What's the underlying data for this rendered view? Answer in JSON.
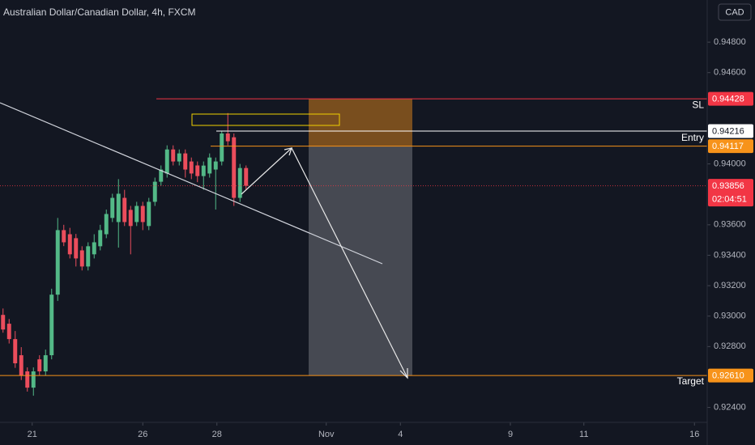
{
  "chart_data": {
    "type": "candlestick",
    "title": "Australian Dollar/Canadian Dollar, 4h, FXCM",
    "currency": "CAD",
    "up_color": "#53b987",
    "down_color": "#eb4d5c",
    "ylim": [
      0.92302,
      0.95077
    ],
    "yticks": [
      {
        "value": 0.948,
        "label": "0.94800"
      },
      {
        "value": 0.946,
        "label": "0.94600"
      },
      {
        "value": 0.94,
        "label": "0.94000"
      },
      {
        "value": 0.936,
        "label": "0.93600"
      },
      {
        "value": 0.934,
        "label": "0.93400"
      },
      {
        "value": 0.932,
        "label": "0.93200"
      },
      {
        "value": 0.93,
        "label": "0.93000"
      },
      {
        "value": 0.928,
        "label": "0.92800"
      },
      {
        "value": 0.924,
        "label": "0.92400"
      }
    ],
    "xlim": [
      0,
      116.4
    ],
    "xticks": [
      {
        "value": 5.3,
        "label": "21"
      },
      {
        "value": 23.5,
        "label": "26"
      },
      {
        "value": 35.7,
        "label": "28"
      },
      {
        "value": 53.7,
        "label": "Nov"
      },
      {
        "value": 65.9,
        "label": "4"
      },
      {
        "value": 84,
        "label": "9"
      },
      {
        "value": 96.1,
        "label": "11"
      },
      {
        "value": 114.3,
        "label": "16"
      }
    ],
    "ohlc": {
      "open": [
        0.93008,
        0.9295,
        0.92849,
        0.92743,
        0.92637,
        0.9253,
        0.92716,
        0.92637,
        0.92743,
        0.93141,
        0.93565,
        0.93538,
        0.93512,
        0.93432,
        0.93326,
        0.93406,
        0.93459,
        0.93538,
        0.93645,
        0.93618,
        0.93777,
        0.93698,
        0.93618,
        0.93724,
        0.93592,
        0.93751,
        0.93883,
        0.93937,
        0.94095,
        0.94016,
        0.94069,
        0.94016,
        0.9399,
        0.9392,
        0.93937,
        0.93963,
        0.94016,
        0.942,
        0.94175,
        0.93777,
        0.93973
      ],
      "high": [
        0.9305,
        0.92981,
        0.92902,
        0.92796,
        0.92663,
        0.92663,
        0.92743,
        0.9278,
        0.9318,
        0.93645,
        0.936,
        0.9358,
        0.9354,
        0.93459,
        0.93485,
        0.93538,
        0.936,
        0.937,
        0.93804,
        0.939,
        0.9383,
        0.93724,
        0.93751,
        0.93751,
        0.93777,
        0.9391,
        0.9399,
        0.94122,
        0.94122,
        0.94095,
        0.94095,
        0.94042,
        0.94016,
        0.94016,
        0.94069,
        0.94042,
        0.94218,
        0.94334,
        0.942,
        0.94,
        0.9399
      ],
      "low": [
        0.92891,
        0.9282,
        0.9266,
        0.9258,
        0.92504,
        0.92477,
        0.9261,
        0.9261,
        0.92716,
        0.931,
        0.9346,
        0.93379,
        0.93326,
        0.933,
        0.933,
        0.93379,
        0.93432,
        0.93512,
        0.93618,
        0.9345,
        0.93592,
        0.93406,
        0.93592,
        0.93565,
        0.93565,
        0.93724,
        0.93857,
        0.9391,
        0.9399,
        0.9399,
        0.9391,
        0.939,
        0.9388,
        0.9383,
        0.9391,
        0.937,
        0.9399,
        0.94122,
        0.93724,
        0.9375,
        0.9383
      ],
      "close": [
        0.92912,
        0.92849,
        0.9269,
        0.9261,
        0.9253,
        0.92637,
        0.92637,
        0.92743,
        0.93141,
        0.93565,
        0.93485,
        0.93406,
        0.93379,
        0.93326,
        0.93459,
        0.93485,
        0.93565,
        0.93671,
        0.93777,
        0.93804,
        0.93618,
        0.93592,
        0.93724,
        0.93618,
        0.93751,
        0.93883,
        0.93963,
        0.94095,
        0.94016,
        0.94069,
        0.93963,
        0.93937,
        0.9392,
        0.93989,
        0.94042,
        0.94016,
        0.942,
        0.94149,
        0.93777,
        0.93973,
        0.93856
      ]
    },
    "levels": [
      {
        "name": "SL",
        "value": 0.94428,
        "value_label": "0.94428",
        "color": "#f23645"
      },
      {
        "value": 0.94216,
        "value_label": "0.94216",
        "color": "#ffffff"
      },
      {
        "name": "Entry",
        "value": 0.94117,
        "value_label": "0.94117",
        "color": "#f7931a"
      },
      {
        "value": 0.93856,
        "value_label": "0.93856",
        "countdown": "02:04:51",
        "color": "#f23645"
      },
      {
        "name": "Target",
        "value": 0.9261,
        "value_label": "0.92610",
        "color": "#f7931a"
      }
    ]
  }
}
